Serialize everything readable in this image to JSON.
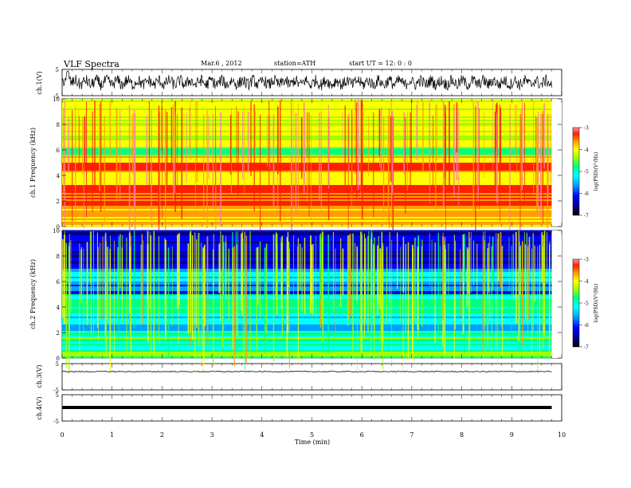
{
  "header": {
    "title": "VLF Spectra",
    "date": "Mar.6 , 2012",
    "station": "station=ATH",
    "start": "start UT = 12: 0 : 0"
  },
  "colors": {
    "background": "#ffffff",
    "axis": "#000000",
    "spectrogram_scale": [
      "#000000",
      "#00008b",
      "#0000ff",
      "#00a0ff",
      "#00ffff",
      "#00ff80",
      "#a0ff00",
      "#ffff00",
      "#ffa000",
      "#ff2000",
      "#ff80a0"
    ]
  },
  "chart_data": [
    {
      "type": "line",
      "panel": "ch1-waveform",
      "ylabel": "ch.1(V)",
      "ylim": [
        -5,
        5
      ],
      "yticks": [
        "5",
        "-5"
      ],
      "xlim": [
        0,
        10
      ],
      "series": [
        {
          "values": "noisy oscillation, mean approx 0 V, amplitude approx ±2.5 V, starting spike ~4 V near t=0.1 min"
        }
      ]
    },
    {
      "type": "heatmap",
      "panel": "ch1-spectrogram",
      "ylabel": "ch.1 Frequency (kHz)",
      "ylim": [
        0,
        10
      ],
      "yticks": [
        "0",
        "2",
        "4",
        "6",
        "8",
        "10"
      ],
      "xlim": [
        0,
        9.8
      ],
      "colorbar": {
        "label": "log(PSD)(V²/Hz)",
        "range": [
          -7,
          -3
        ],
        "ticks": [
          "-3",
          "-4",
          "-5",
          "-6",
          "-7"
        ]
      },
      "dominant_bands_kHz": [
        {
          "from": 0.0,
          "to": 0.4,
          "level": "yellow/white"
        },
        {
          "from": 1.5,
          "to": 3.2,
          "level": "red/orange"
        },
        {
          "from": 4.4,
          "to": 5.0,
          "level": "red"
        },
        {
          "from": 5.5,
          "to": 6.2,
          "level": "green"
        },
        {
          "from": 6.2,
          "to": 10.0,
          "level": "green/yellow"
        }
      ]
    },
    {
      "type": "heatmap",
      "panel": "ch2-spectrogram",
      "ylabel": "ch.2 Frequency (kHz)",
      "ylim": [
        0,
        10
      ],
      "yticks": [
        "0",
        "2",
        "4",
        "6",
        "8",
        "10"
      ],
      "xlim": [
        0,
        9.8
      ],
      "colorbar": {
        "label": "log(PSD)(V²/Hz)",
        "range": [
          -7,
          -3
        ],
        "ticks": [
          "-3",
          "-4",
          "-5",
          "-6",
          "-7"
        ]
      },
      "dominant_bands_kHz": [
        {
          "from": 0.0,
          "to": 1.0,
          "level": "green/blue"
        },
        {
          "from": 1.0,
          "to": 5.0,
          "level": "cyan/green"
        },
        {
          "from": 5.0,
          "to": 7.0,
          "level": "blue"
        },
        {
          "from": 7.0,
          "to": 10.0,
          "level": "dark blue with vertical impulses"
        }
      ]
    },
    {
      "type": "line",
      "panel": "ch3-waveform",
      "ylabel": "ch.3(V)",
      "ylim": [
        -5,
        5
      ],
      "yticks": [
        "5",
        "-5"
      ],
      "xlim": [
        0,
        10
      ],
      "series": [
        {
          "values": "flat, approx 0 V"
        }
      ]
    },
    {
      "type": "line",
      "panel": "ch4-waveform",
      "ylabel": "ch.4(V)",
      "ylim": [
        -5,
        5
      ],
      "yticks": [
        "5",
        "-5"
      ],
      "xlim": [
        0,
        10
      ],
      "xlabel": "Time (min)",
      "xticks": [
        "0",
        "1",
        "2",
        "3",
        "4",
        "5",
        "6",
        "7",
        "8",
        "9",
        "10"
      ],
      "series": [
        {
          "values": "flat thick band near 0 V"
        }
      ]
    }
  ]
}
